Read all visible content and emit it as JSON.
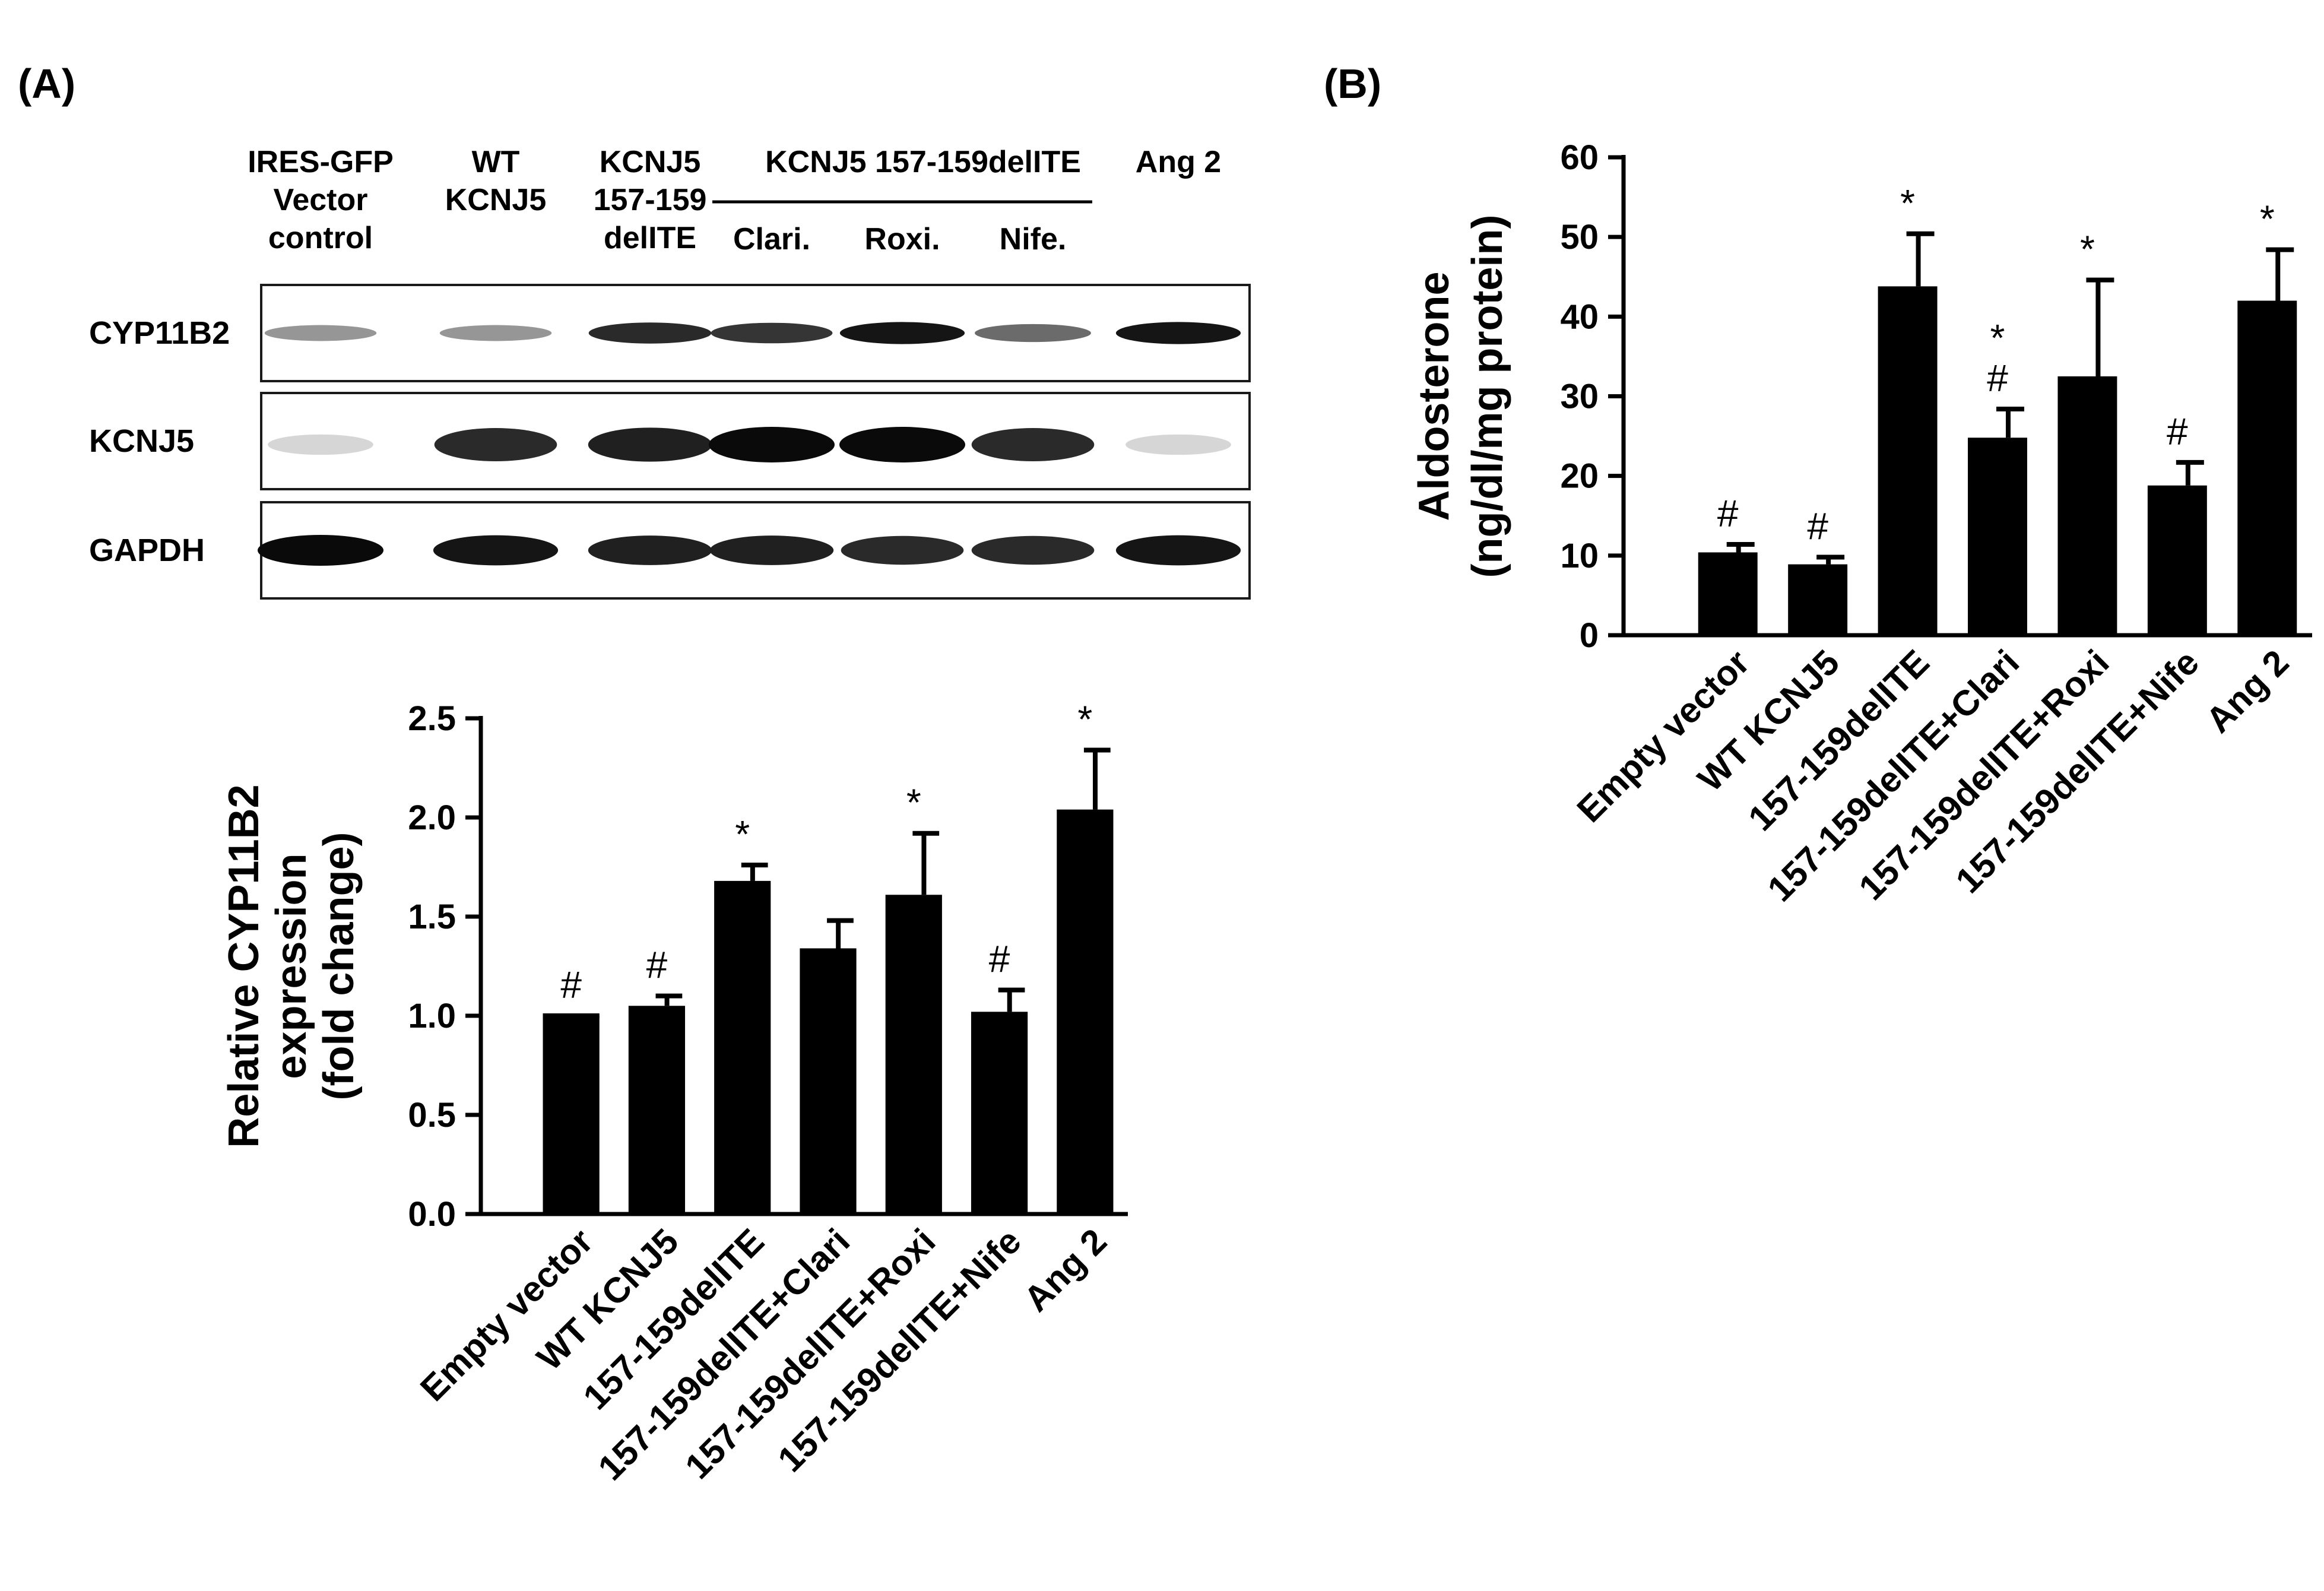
{
  "panel_a_label": "(A)",
  "panel_b_label": "(B)",
  "blot": {
    "lane_headers": [
      {
        "lines": [
          "IRES-GFP",
          "Vector",
          "control"
        ]
      },
      {
        "lines": [
          "WT",
          "KCNJ5"
        ]
      },
      {
        "lines": [
          "KCNJ5",
          "157-159",
          "delITE"
        ]
      },
      {
        "lines": [
          "Clari."
        ]
      },
      {
        "lines": [
          "Roxi."
        ]
      },
      {
        "lines": [
          "Nife."
        ]
      },
      {
        "lines": [
          "Ang 2"
        ]
      }
    ],
    "group_header": "KCNJ5 157-159delITE",
    "rows": [
      {
        "label": "CYP11B2",
        "intensity": [
          0.35,
          0.35,
          0.85,
          0.8,
          0.95,
          0.55,
          0.95
        ]
      },
      {
        "label": "KCNJ5",
        "intensity": [
          0.05,
          0.85,
          0.9,
          1.0,
          1.0,
          0.85,
          0.05
        ]
      },
      {
        "label": "GAPDH",
        "intensity": [
          1.0,
          0.95,
          0.9,
          0.9,
          0.85,
          0.85,
          0.95
        ]
      }
    ]
  },
  "chart_data": [
    {
      "type": "bar",
      "title": "",
      "categories": [
        "Empty vector",
        "WT KCNJ5",
        "157-159delITE",
        "157-159delITE+Clari",
        "157-159delITE+Roxi",
        "157-159delITE+Nife",
        "Ang 2"
      ],
      "values": [
        1.0,
        1.05,
        1.68,
        1.34,
        1.61,
        1.02,
        2.04
      ],
      "errors": [
        0.0,
        0.05,
        0.08,
        0.14,
        0.31,
        0.11,
        0.3
      ],
      "annotations": [
        "#",
        "#",
        "*",
        "",
        "*",
        "#",
        "*"
      ],
      "ylabel_lines": [
        "Relative CYP11B2",
        "expression",
        "(fold change)"
      ],
      "ylim": [
        0,
        2.5
      ],
      "yticks": [
        "0.0",
        "0.5",
        "1.0",
        "1.5",
        "2.0",
        "2.5"
      ],
      "grid": false
    },
    {
      "type": "bar",
      "title": "",
      "categories": [
        "Empty vector",
        "WT KCNJ5",
        "157-159delITE",
        "157-159delITE+Clari",
        "157-159delITE+Roxi",
        "157-159delITE+Nife",
        "Ang 2"
      ],
      "values": [
        10.4,
        8.9,
        43.8,
        24.8,
        32.5,
        18.8,
        42.0
      ],
      "errors": [
        1.0,
        0.9,
        6.6,
        3.6,
        12.1,
        2.9,
        6.4
      ],
      "annotations": [
        "#",
        "#",
        "*",
        "*\n#",
        "*",
        "#",
        "*"
      ],
      "ylabel_lines": [
        "Aldosterone",
        "(ng/dl/mg protein)"
      ],
      "ylim": [
        0,
        60
      ],
      "yticks": [
        "0",
        "10",
        "20",
        "30",
        "40",
        "50",
        "60"
      ],
      "grid": false
    }
  ]
}
